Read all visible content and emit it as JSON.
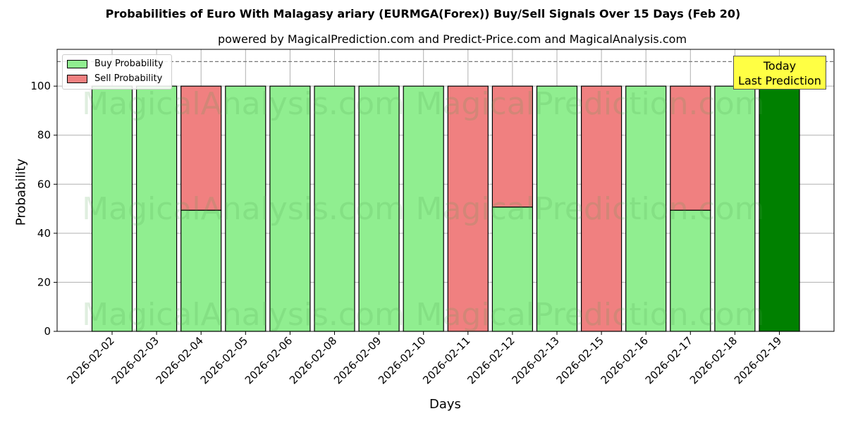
{
  "chart_data": {
    "type": "bar",
    "stacked": true,
    "title": "Probabilities of Euro With Malagasy ariary (EURMGA(Forex)) Buy/Sell Signals Over 15 Days (Feb 20)",
    "subtitle": "powered by MagicalPrediction.com and Predict-Price.com and MagicalAnalysis.com",
    "xlabel": "Days",
    "ylabel": "Probability",
    "ylim": [
      0,
      115
    ],
    "yticks": [
      0,
      20,
      40,
      60,
      80,
      100
    ],
    "reference_line": 110,
    "categories": [
      "2026-02-02",
      "2026-02-03",
      "2026-02-04",
      "2026-02-05",
      "2026-02-06",
      "2026-02-08",
      "2026-02-09",
      "2026-02-10",
      "2026-02-11",
      "2026-02-12",
      "2026-02-13",
      "2026-02-15",
      "2026-02-16",
      "2026-02-17",
      "2026-02-18",
      "2026-02-19"
    ],
    "series": [
      {
        "name": "Buy Probability",
        "color": "#90ee90",
        "values": [
          100,
          100,
          49.4,
          100,
          100,
          100,
          100,
          100,
          0,
          50.7,
          100,
          0,
          100,
          49.4,
          100,
          100
        ]
      },
      {
        "name": "Sell Probability",
        "color": "#f08080",
        "values": [
          0,
          0,
          50.6,
          0,
          0,
          0,
          0,
          0,
          100,
          49.3,
          0,
          100,
          0,
          50.6,
          0,
          0
        ]
      }
    ],
    "highlight": {
      "index": 15,
      "color": "#008000",
      "annotation": "Today\nLast Prediction"
    },
    "legend_position": "upper left",
    "grid": true,
    "watermarks": [
      "MagicalAnalysis.com",
      "MagicalPrediction.com"
    ]
  },
  "legend": {
    "buy": "Buy Probability",
    "sell": "Sell Probability"
  },
  "annotation": {
    "line1": "Today",
    "line2": "Last Prediction"
  }
}
